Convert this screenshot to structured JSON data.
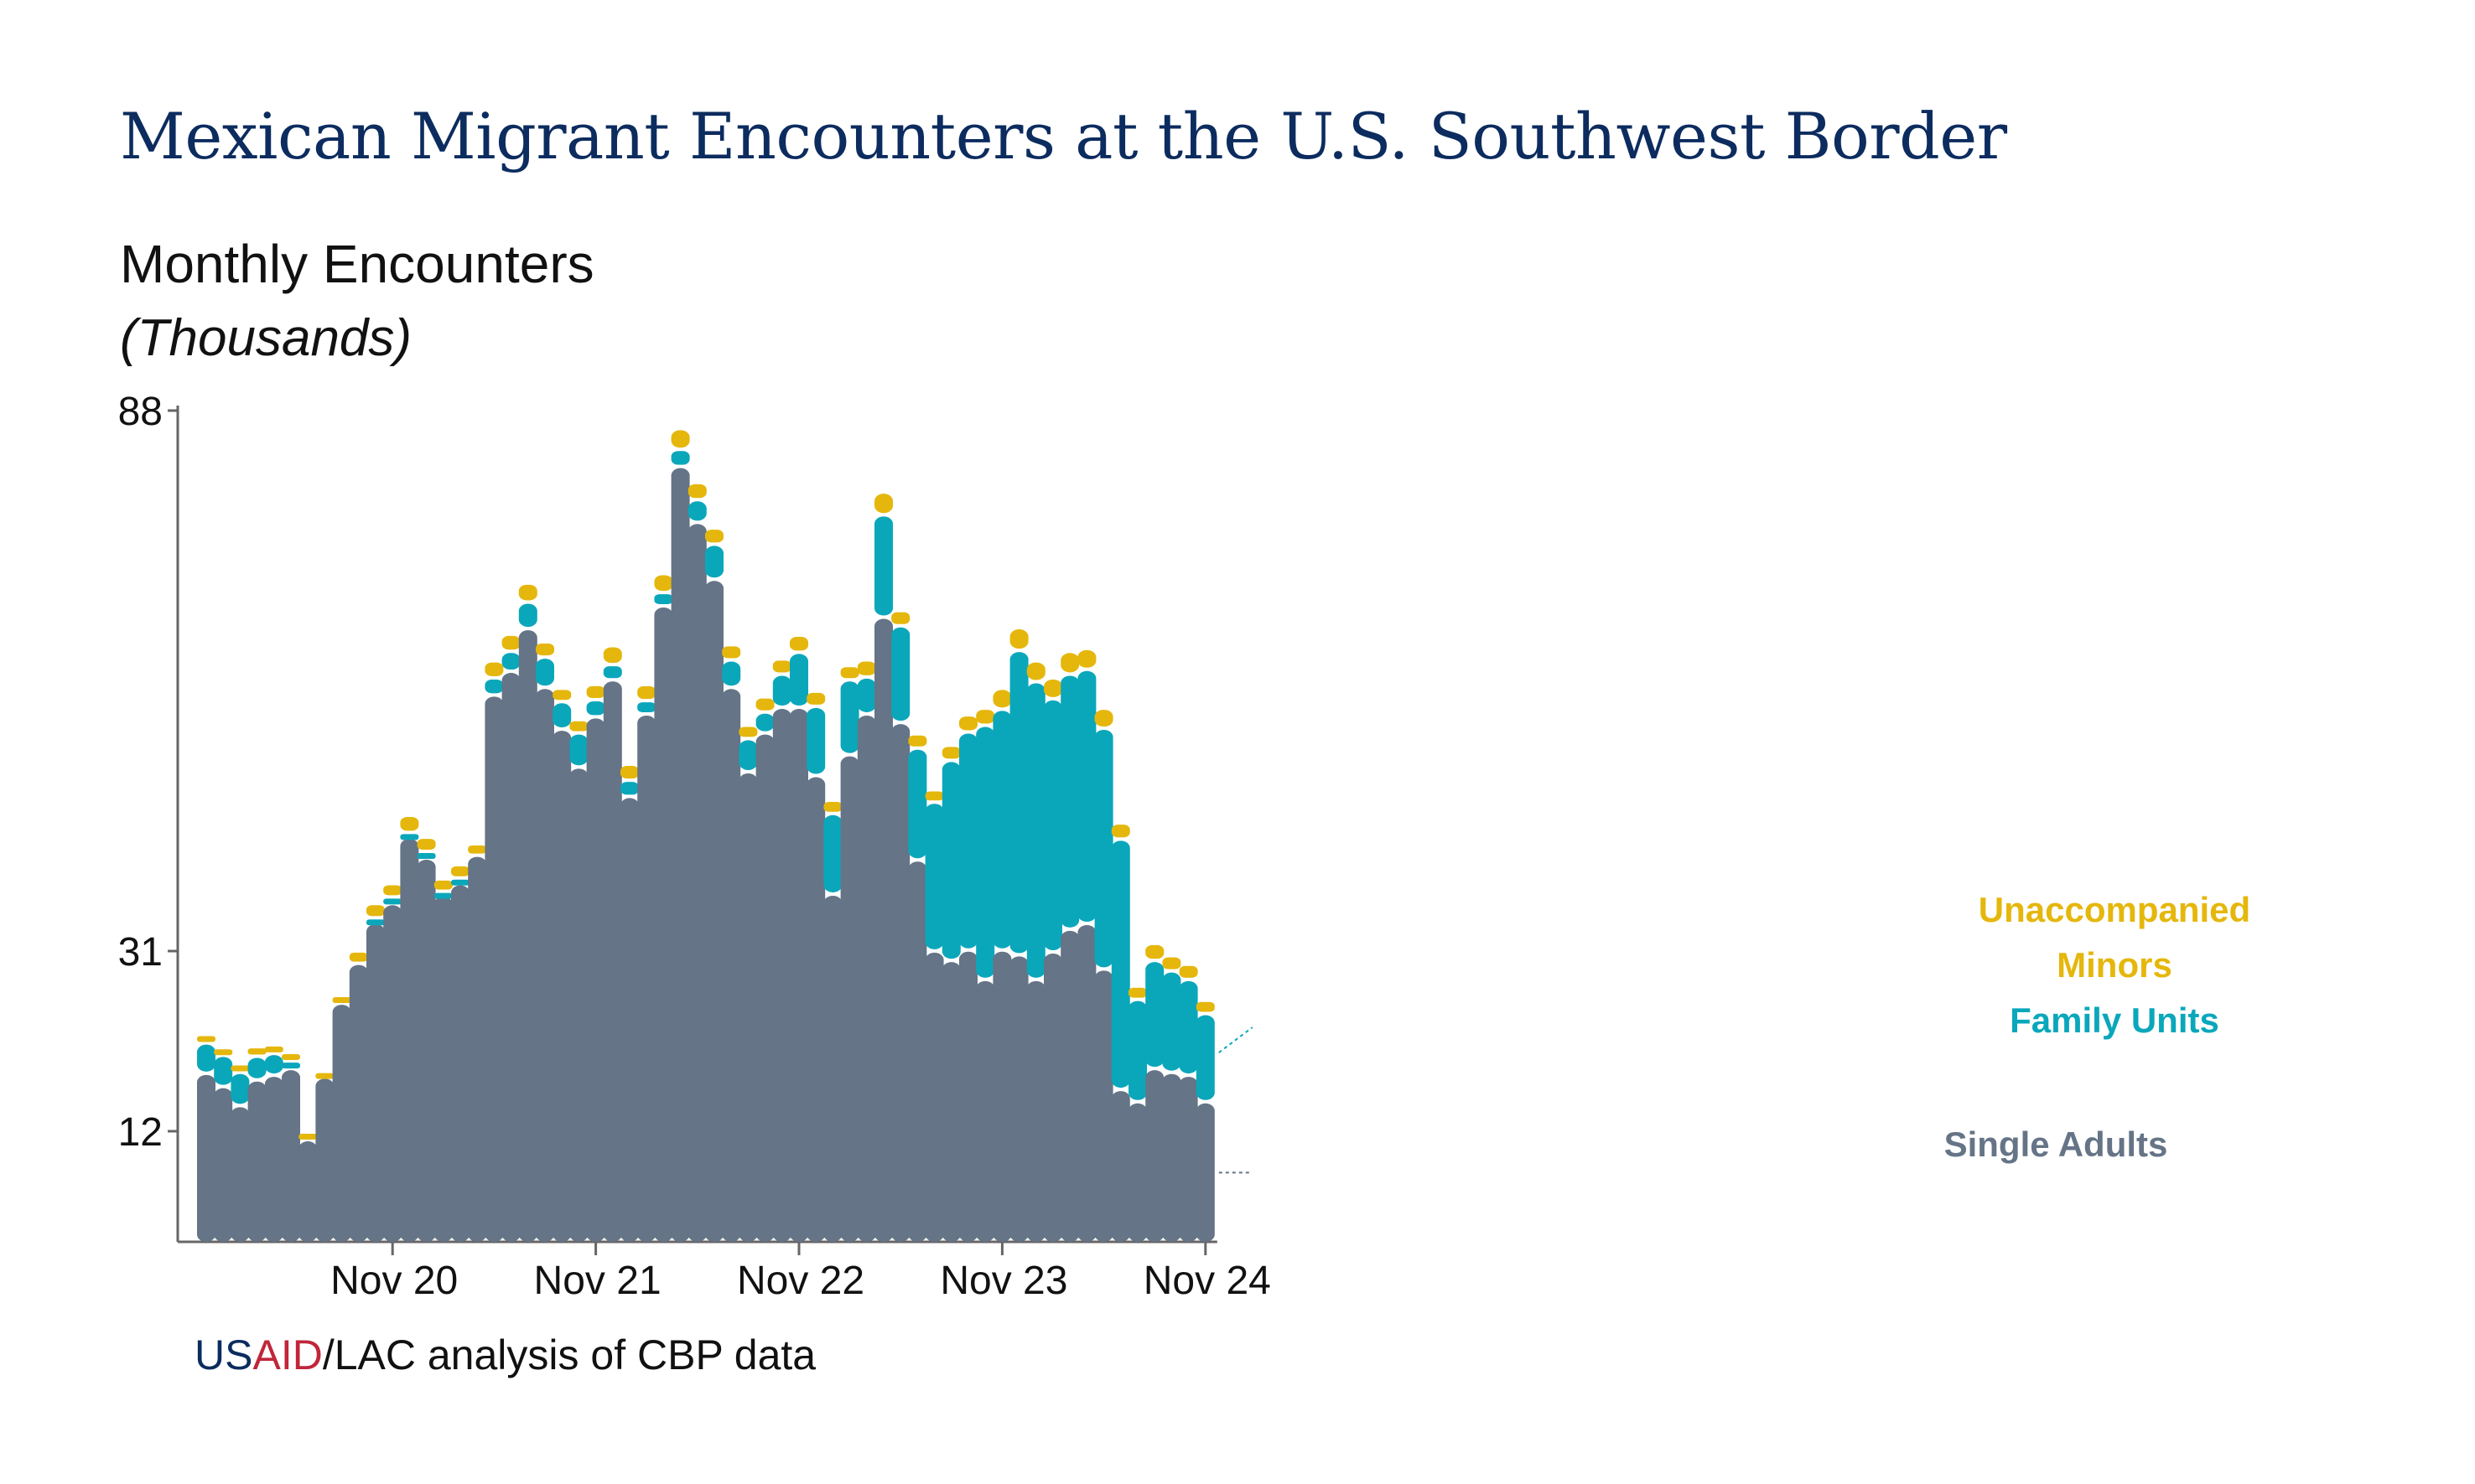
{
  "title": "Mexican Migrant Encounters at the U.S. Southwest Border",
  "source": {
    "us": "US",
    "aid": "AID",
    "rest": "/LAC analysis of CBP data"
  },
  "colors": {
    "single_adults": "#657486",
    "family_units": "#0aa7bb",
    "unaccompanied_minors": "#e5b70c",
    "title": "#0c2c5f",
    "usaid_blue": "#0c2c5f",
    "usaid_red": "#c0263a"
  },
  "chart_data": {
    "type": "bar",
    "stacked": true,
    "title": "Mexican Migrant Encounters at the U.S. Southwest Border",
    "ylabel": "Monthly Encounters",
    "yunit": "(Thousands)",
    "ylim": [
      0,
      88
    ],
    "yticks": [
      12,
      31,
      88
    ],
    "xticks": [
      "Nov 20",
      "Nov 21",
      "Nov 22",
      "Nov 23",
      "Nov 24"
    ],
    "legend_placement": "right, labels beside final bar",
    "series": [
      {
        "name": "Single Adults",
        "key": "single_adults",
        "values": [
          17.6,
          16.2,
          14.2,
          16.9,
          17.4,
          18.1,
          10.6,
          17.2,
          25,
          29.2,
          33.5,
          35.5,
          42.5,
          40.3,
          36.4,
          37.6,
          40.6,
          57.5,
          60,
          64.5,
          58.3,
          53.9,
          49.9,
          55.2,
          59.1,
          46.8,
          55.5,
          66.9,
          81.6,
          75.7,
          69.7,
          58.3,
          49.4,
          53.5,
          56.2,
          56.2,
          49,
          36.5,
          51.2,
          55.5,
          65.7,
          54.6,
          40.1,
          30.5,
          29.5,
          30.6,
          27.5,
          30.6,
          30.1,
          27.5,
          30.4,
          32.8,
          33.4,
          28.6,
          15.9,
          14.6,
          18.1,
          17.7,
          17.4,
          14.6
        ]
      },
      {
        "name": "Family Units",
        "key": "family_units",
        "values": [
          3.2,
          3.3,
          3.5,
          2.5,
          2.3,
          0.8,
          0,
          0,
          0,
          0,
          0.5,
          0.7,
          0.5,
          0.7,
          0.4,
          0.6,
          0,
          1.8,
          2.1,
          2.8,
          3.2,
          2.9,
          3.6,
          1.8,
          1.6,
          1.7,
          1.4,
          1.4,
          1.8,
          2.4,
          3.7,
          2.9,
          3.5,
          2.2,
          3.5,
          5.8,
          7.3,
          8.5,
          7.9,
          3.9,
          10.8,
          10.2,
          11.8,
          15.7,
          21.1,
          23,
          26.8,
          25.4,
          32.1,
          31.4,
          26.7,
          26.9,
          26.8,
          25.4,
          26.4,
          10.8,
          11.4,
          10.7,
          10.1,
          9.3
        ]
      },
      {
        "name": "Unaccompanied Minors",
        "key": "unaccompanied_minors",
        "values": [
          0.9,
          0.8,
          0.9,
          1,
          0.9,
          0.9,
          0.8,
          0.6,
          0.8,
          1.3,
          1.5,
          1.4,
          1.8,
          1.5,
          1.3,
          1.4,
          1.2,
          1.8,
          1.8,
          2,
          1.6,
          1.4,
          1.4,
          1.6,
          2,
          1.7,
          1.7,
          2,
          2.2,
          1.8,
          1.7,
          1.6,
          1.4,
          1.6,
          1.6,
          1.8,
          1.6,
          1.4,
          1.5,
          1.8,
          2.4,
          1.6,
          1.5,
          1.3,
          1.6,
          1.8,
          1.8,
          2.2,
          2.4,
          2.2,
          2.2,
          2.4,
          2.2,
          2.1,
          1.7,
          1.4,
          1.8,
          1.6,
          1.6,
          1.4
        ]
      }
    ]
  }
}
